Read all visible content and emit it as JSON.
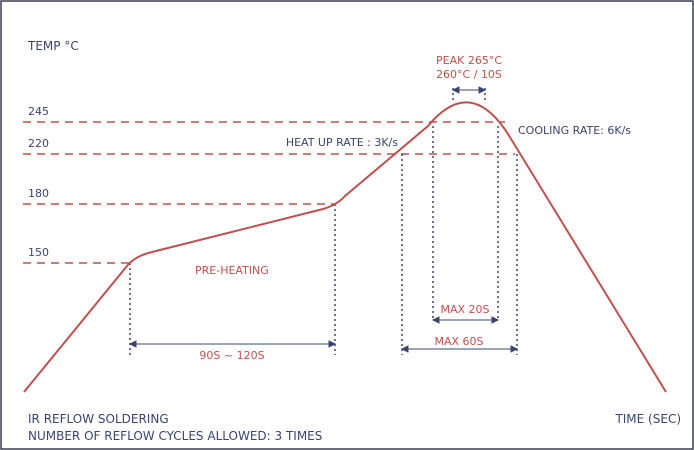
{
  "chart_data": {
    "type": "line",
    "title": "IR REFLOW SOLDERING",
    "subtitle": "NUMBER OF REFLOW CYCLES ALLOWED: 3 TIMES",
    "ylabel": "TEMP °C",
    "xlabel": "TIME (SEC)",
    "y_ticks": [
      "245",
      "220",
      "180",
      "150"
    ],
    "y_levels": [
      245,
      220,
      180,
      150
    ],
    "annotations": {
      "peak": "PEAK 265°C",
      "peak_hold": "260°C / 10S",
      "heat_up_rate": "HEAT UP RATE : 3K/s",
      "cooling_rate": "COOLING RATE: 6K/s",
      "pre_heating": "PRE-HEATING",
      "preheat_duration": "90S ~ 120S",
      "max_20": "MAX 20S",
      "max_60": "MAX 60S"
    },
    "colors": {
      "curve": "#c0504d",
      "guide_dash": "#c0504d",
      "guide_dot": "#3b4470",
      "text_dark": "#3b4470",
      "text_red": "#c0504d",
      "border": "#3b3b4f"
    }
  }
}
